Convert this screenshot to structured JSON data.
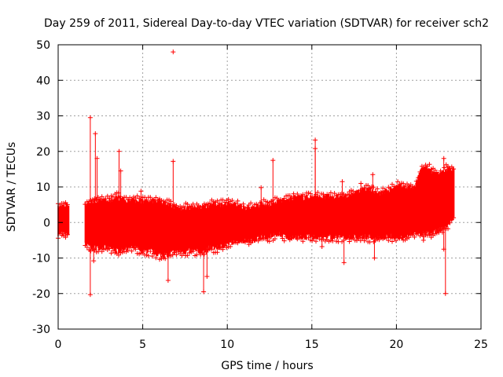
{
  "chart_data": {
    "type": "scatter",
    "title": "Day 259 of 2011, Sidereal Day-to-day VTEC variation (SDTVAR) for receiver sch2",
    "xlabel": "GPS time / hours",
    "ylabel": "SDTVAR / TECUs",
    "xlim": [
      0,
      25
    ],
    "ylim": [
      -30,
      50
    ],
    "xticks": [
      0,
      5,
      10,
      15,
      20,
      25
    ],
    "yticks": [
      -30,
      -20,
      -10,
      0,
      10,
      20,
      30,
      40,
      50
    ],
    "grid": true,
    "marker": "+",
    "color": "#ff0000",
    "series": [
      {
        "name": "SDTVAR",
        "band_x": [
          0.0,
          0.5,
          1.6,
          2.0,
          2.5,
          3.0,
          3.5,
          4.0,
          4.5,
          5.0,
          5.5,
          6.0,
          6.5,
          7.0,
          7.5,
          8.0,
          8.5,
          9.0,
          9.5,
          10.0,
          10.5,
          11.0,
          11.5,
          12.0,
          12.5,
          13.0,
          13.5,
          14.0,
          14.5,
          15.0,
          15.5,
          16.0,
          16.5,
          17.0,
          17.5,
          18.0,
          18.5,
          19.0,
          19.5,
          20.0,
          20.5,
          21.0,
          21.5,
          22.0,
          22.5,
          23.0,
          23.4
        ],
        "band_low": [
          -3,
          -3,
          -6,
          -7,
          -7,
          -7,
          -8,
          -7,
          -7,
          -8,
          -8,
          -9,
          -9,
          -8,
          -8,
          -8,
          -8,
          -7,
          -7,
          -6,
          -5,
          -5,
          -5,
          -4,
          -4,
          -3,
          -4,
          -4,
          -4,
          -4,
          -4,
          -4,
          -4,
          -4,
          -4,
          -4,
          -4,
          -4,
          -4,
          -4,
          -4,
          -3,
          -3,
          -3,
          -2,
          -1,
          2
        ],
        "band_high": [
          4,
          5,
          5,
          6,
          6,
          6,
          7,
          6,
          6,
          6,
          6,
          6,
          5,
          4,
          4,
          4,
          4,
          5,
          5,
          5,
          5,
          4,
          4,
          5,
          5,
          6,
          6,
          7,
          7,
          7,
          7,
          7,
          7,
          7,
          8,
          9,
          9,
          8,
          9,
          10,
          10,
          9,
          15,
          15,
          13,
          15,
          15
        ],
        "spikes": [
          {
            "x": 1.9,
            "y": 29.5
          },
          {
            "x": 1.9,
            "y": -20.3
          },
          {
            "x": 2.2,
            "y": 25.0
          },
          {
            "x": 2.3,
            "y": 18.0
          },
          {
            "x": 2.1,
            "y": -10.8
          },
          {
            "x": 3.6,
            "y": 20.0
          },
          {
            "x": 3.7,
            "y": 14.5
          },
          {
            "x": 4.9,
            "y": 8.8
          },
          {
            "x": 6.8,
            "y": 17.2
          },
          {
            "x": 6.8,
            "y": 48.0
          },
          {
            "x": 6.5,
            "y": -16.3
          },
          {
            "x": 8.6,
            "y": -19.5
          },
          {
            "x": 8.8,
            "y": -15.2
          },
          {
            "x": 12.0,
            "y": 9.8
          },
          {
            "x": 12.6,
            "y": 6.0
          },
          {
            "x": 12.7,
            "y": 17.5
          },
          {
            "x": 15.2,
            "y": 23.2
          },
          {
            "x": 15.2,
            "y": 20.8
          },
          {
            "x": 15.6,
            "y": -6.8
          },
          {
            "x": 16.8,
            "y": 11.5
          },
          {
            "x": 16.9,
            "y": -11.3
          },
          {
            "x": 17.9,
            "y": 11.0
          },
          {
            "x": 18.6,
            "y": 13.5
          },
          {
            "x": 18.7,
            "y": -10.0
          },
          {
            "x": 21.6,
            "y": -5.0
          },
          {
            "x": 22.8,
            "y": 18.0
          },
          {
            "x": 22.9,
            "y": -20.0
          },
          {
            "x": 22.8,
            "y": -7.5
          }
        ]
      }
    ]
  }
}
